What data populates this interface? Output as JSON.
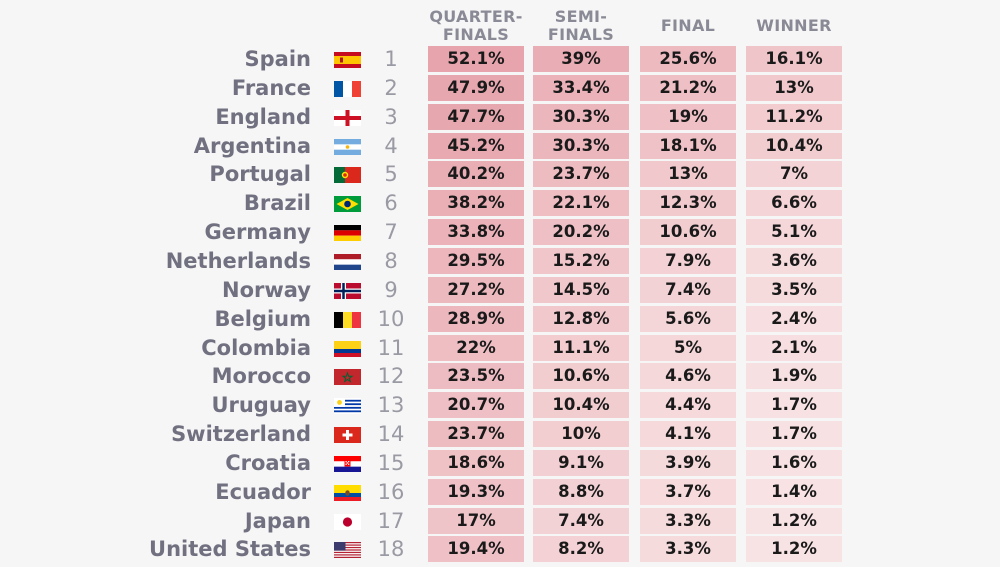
{
  "columns": [
    "QUARTER-\nFINALS",
    "SEMI-\nFINALS",
    "FINAL",
    "WINNER"
  ],
  "chart_data": {
    "type": "table",
    "columns": [
      "QUARTER-FINALS",
      "SEMI-FINALS",
      "FINAL",
      "WINNER"
    ],
    "rows": [
      {
        "country": "Spain",
        "flag": "spain-flag",
        "rank": "1",
        "values": [
          "52.1%",
          "39%",
          "25.6%",
          "16.1%"
        ],
        "numbers": [
          52.1,
          39,
          25.6,
          16.1
        ]
      },
      {
        "country": "France",
        "flag": "france-flag",
        "rank": "2",
        "values": [
          "47.9%",
          "33.4%",
          "21.2%",
          "13%"
        ],
        "numbers": [
          47.9,
          33.4,
          21.2,
          13
        ]
      },
      {
        "country": "England",
        "flag": "england-flag",
        "rank": "3",
        "values": [
          "47.7%",
          "30.3%",
          "19%",
          "11.2%"
        ],
        "numbers": [
          47.7,
          30.3,
          19,
          11.2
        ]
      },
      {
        "country": "Argentina",
        "flag": "argentina-flag",
        "rank": "4",
        "values": [
          "45.2%",
          "30.3%",
          "18.1%",
          "10.4%"
        ],
        "numbers": [
          45.2,
          30.3,
          18.1,
          10.4
        ]
      },
      {
        "country": "Portugal",
        "flag": "portugal-flag",
        "rank": "5",
        "values": [
          "40.2%",
          "23.7%",
          "13%",
          "7%"
        ],
        "numbers": [
          40.2,
          23.7,
          13,
          7
        ]
      },
      {
        "country": "Brazil",
        "flag": "brazil-flag",
        "rank": "6",
        "values": [
          "38.2%",
          "22.1%",
          "12.3%",
          "6.6%"
        ],
        "numbers": [
          38.2,
          22.1,
          12.3,
          6.6
        ]
      },
      {
        "country": "Germany",
        "flag": "germany-flag",
        "rank": "7",
        "values": [
          "33.8%",
          "20.2%",
          "10.6%",
          "5.1%"
        ],
        "numbers": [
          33.8,
          20.2,
          10.6,
          5.1
        ]
      },
      {
        "country": "Netherlands",
        "flag": "netherlands-flag",
        "rank": "8",
        "values": [
          "29.5%",
          "15.2%",
          "7.9%",
          "3.6%"
        ],
        "numbers": [
          29.5,
          15.2,
          7.9,
          3.6
        ]
      },
      {
        "country": "Norway",
        "flag": "norway-flag",
        "rank": "9",
        "values": [
          "27.2%",
          "14.5%",
          "7.4%",
          "3.5%"
        ],
        "numbers": [
          27.2,
          14.5,
          7.4,
          3.5
        ]
      },
      {
        "country": "Belgium",
        "flag": "belgium-flag",
        "rank": "10",
        "values": [
          "28.9%",
          "12.8%",
          "5.6%",
          "2.4%"
        ],
        "numbers": [
          28.9,
          12.8,
          5.6,
          2.4
        ]
      },
      {
        "country": "Colombia",
        "flag": "colombia-flag",
        "rank": "11",
        "values": [
          "22%",
          "11.1%",
          "5%",
          "2.1%"
        ],
        "numbers": [
          22,
          11.1,
          5,
          2.1
        ]
      },
      {
        "country": "Morocco",
        "flag": "morocco-flag",
        "rank": "12",
        "values": [
          "23.5%",
          "10.6%",
          "4.6%",
          "1.9%"
        ],
        "numbers": [
          23.5,
          10.6,
          4.6,
          1.9
        ]
      },
      {
        "country": "Uruguay",
        "flag": "uruguay-flag",
        "rank": "13",
        "values": [
          "20.7%",
          "10.4%",
          "4.4%",
          "1.7%"
        ],
        "numbers": [
          20.7,
          10.4,
          4.4,
          1.7
        ]
      },
      {
        "country": "Switzerland",
        "flag": "switzerland-flag",
        "rank": "14",
        "values": [
          "23.7%",
          "10%",
          "4.1%",
          "1.7%"
        ],
        "numbers": [
          23.7,
          10,
          4.1,
          1.7
        ]
      },
      {
        "country": "Croatia",
        "flag": "croatia-flag",
        "rank": "15",
        "values": [
          "18.6%",
          "9.1%",
          "3.9%",
          "1.6%"
        ],
        "numbers": [
          18.6,
          9.1,
          3.9,
          1.6
        ]
      },
      {
        "country": "Ecuador",
        "flag": "ecuador-flag",
        "rank": "16",
        "values": [
          "19.3%",
          "8.8%",
          "3.7%",
          "1.4%"
        ],
        "numbers": [
          19.3,
          8.8,
          3.7,
          1.4
        ]
      },
      {
        "country": "Japan",
        "flag": "japan-flag",
        "rank": "17",
        "values": [
          "17%",
          "7.4%",
          "3.3%",
          "1.2%"
        ],
        "numbers": [
          17,
          7.4,
          3.3,
          1.2
        ]
      },
      {
        "country": "United States",
        "flag": "united-states-flag",
        "rank": "18",
        "values": [
          "19.4%",
          "8.2%",
          "3.3%",
          "1.2%"
        ],
        "numbers": [
          19.4,
          8.2,
          3.3,
          1.2
        ]
      }
    ],
    "color_scale": {
      "low": "#fbeeee",
      "high": "#e6a2aa"
    },
    "grid": false,
    "legend": "none"
  }
}
